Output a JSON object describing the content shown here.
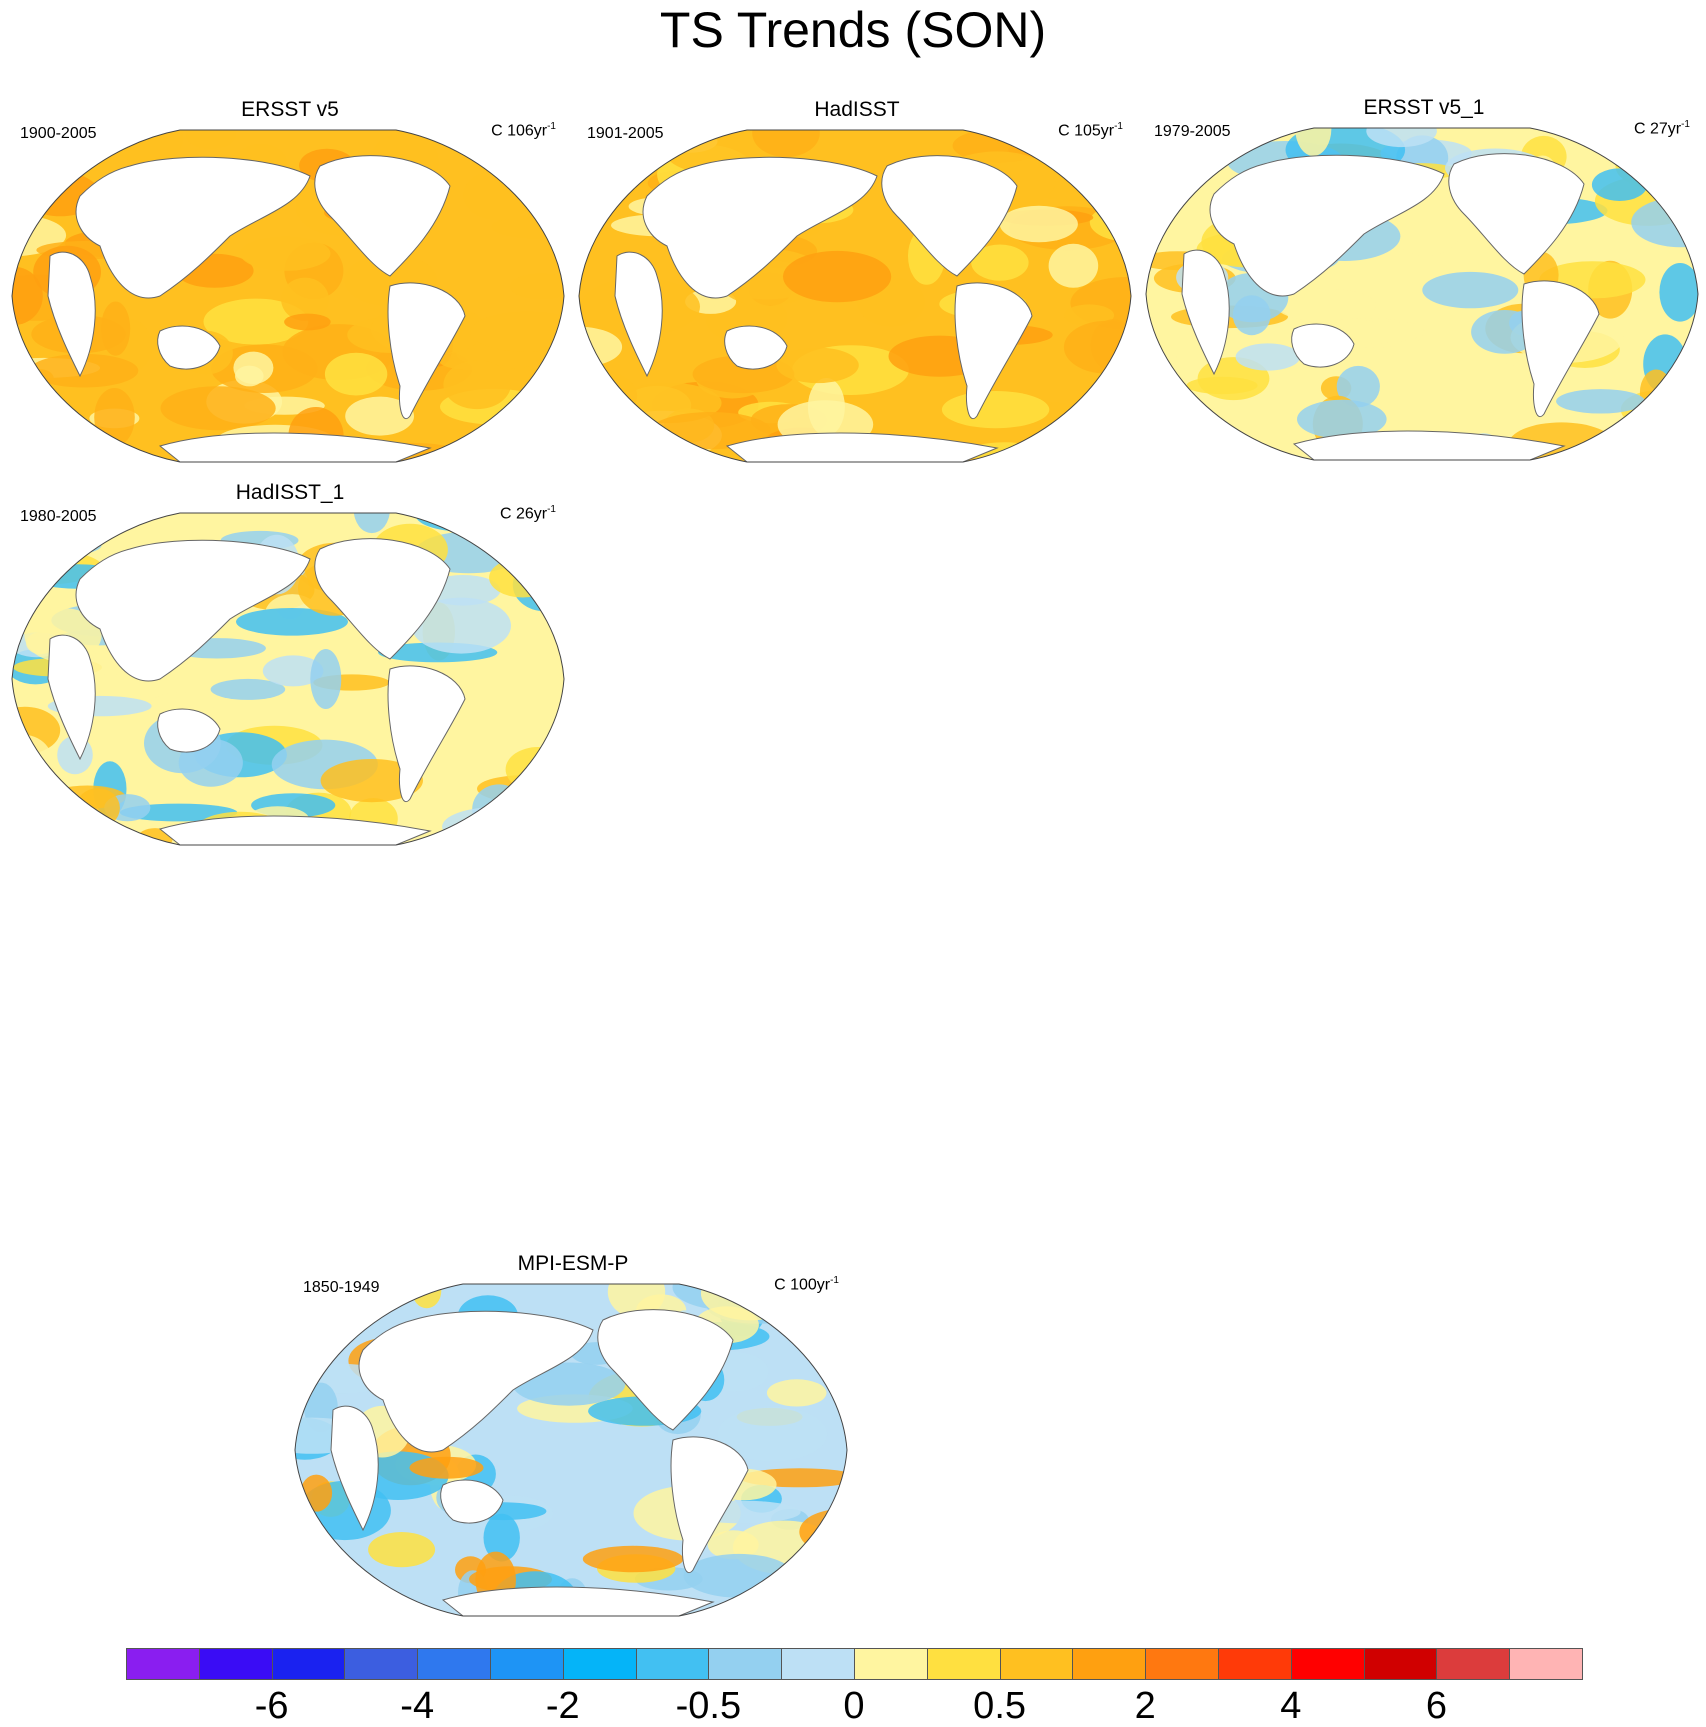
{
  "figure_title": "TS Trends (SON)",
  "chart_data": [
    {
      "type": "heatmap",
      "title": "ERSST v5",
      "period": "1900-2005",
      "units": "C 106yr",
      "units_exponent": "-1",
      "projection": "Robinson",
      "pattern": "warm"
    },
    {
      "type": "heatmap",
      "title": "HadISST",
      "period": "1901-2005",
      "units": "C 105yr",
      "units_exponent": "-1",
      "projection": "Robinson",
      "pattern": "warm"
    },
    {
      "type": "heatmap",
      "title": "ERSST v5_1",
      "period": "1979-2005",
      "units": "C 27yr",
      "units_exponent": "-1",
      "projection": "Robinson",
      "pattern": "mixed"
    },
    {
      "type": "heatmap",
      "title": "HadISST_1",
      "period": "1980-2005",
      "units": "C 26yr",
      "units_exponent": "-1",
      "projection": "Robinson",
      "pattern": "mixed"
    },
    {
      "type": "heatmap",
      "title": "MPI-ESM-P",
      "period": "1850-1949",
      "units": "C 100yr",
      "units_exponent": "-1",
      "projection": "Robinson",
      "pattern": "cool"
    }
  ],
  "colorbar": {
    "colors": [
      "#8a1ef0",
      "#3a0cf5",
      "#1a22f0",
      "#3c5ee0",
      "#2f78ee",
      "#1e94f5",
      "#05b4f8",
      "#42c0f2",
      "#94d0f0",
      "#bde0f5",
      "#fff5a0",
      "#ffe040",
      "#ffc020",
      "#ffa010",
      "#ff7810",
      "#ff3a08",
      "#ff0000",
      "#d00000",
      "#dc3c3c",
      "#ffb4b4"
    ],
    "tick_labels": [
      {
        "label": "-6",
        "boundary": 2
      },
      {
        "label": "-4",
        "boundary": 4
      },
      {
        "label": "-2",
        "boundary": 6
      },
      {
        "label": "-0.5",
        "boundary": 8
      },
      {
        "label": "0",
        "boundary": 10
      },
      {
        "label": "0.5",
        "boundary": 12
      },
      {
        "label": "2",
        "boundary": 14
      },
      {
        "label": "4",
        "boundary": 16
      },
      {
        "label": "6",
        "boundary": 18
      }
    ]
  }
}
